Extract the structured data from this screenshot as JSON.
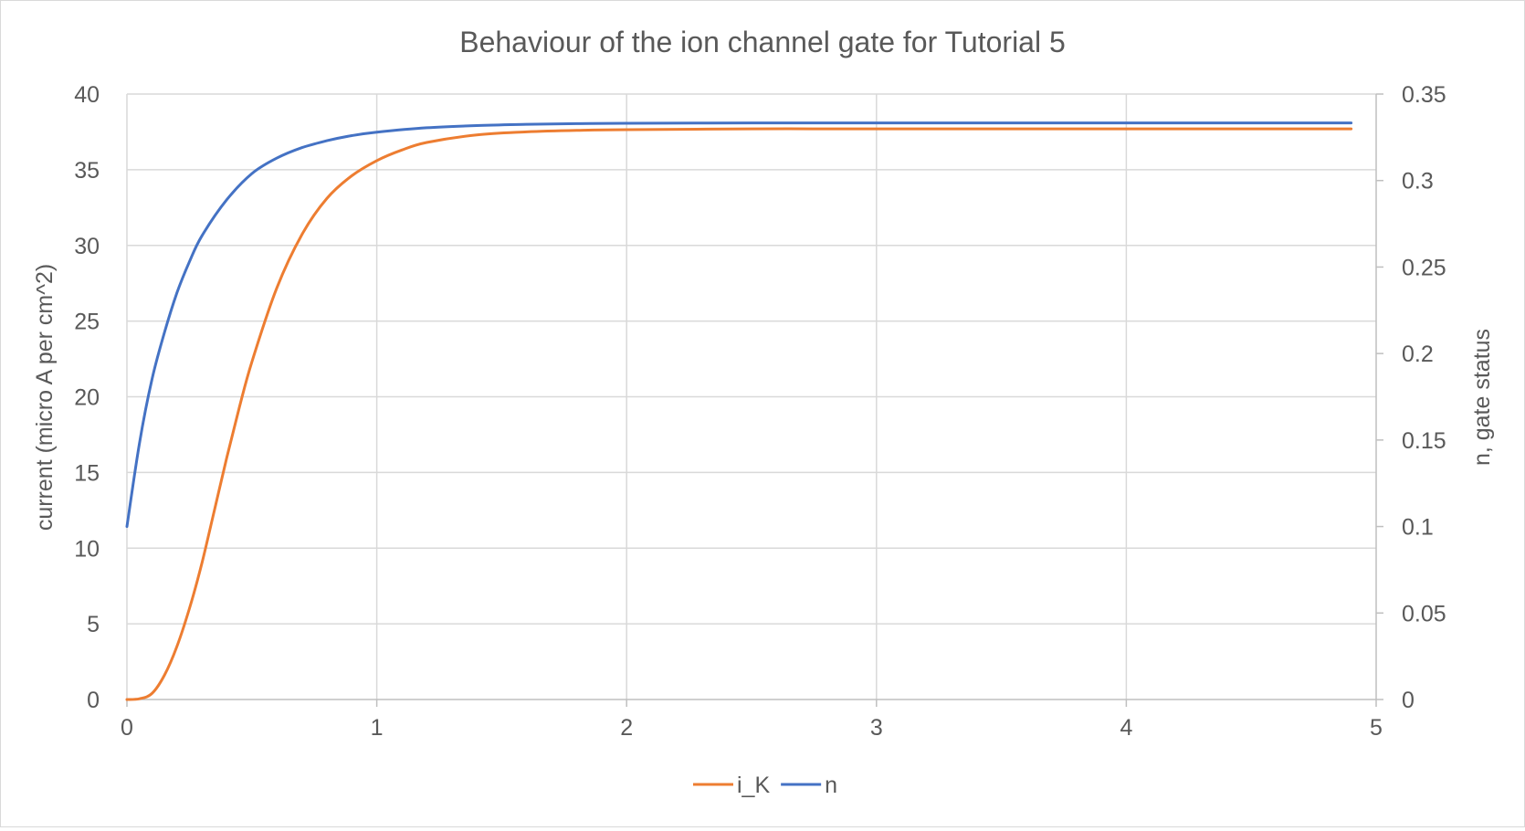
{
  "chart_data": {
    "type": "line",
    "title": "Behaviour of the ion channel gate for Tutorial 5",
    "ylabel": "current (micro A per cm^2)",
    "y2label": "n, gate status",
    "xlabel": "",
    "xlim": [
      0,
      5
    ],
    "ylim": [
      0,
      40
    ],
    "y2lim": [
      0,
      0.35
    ],
    "xticks": [
      "0",
      "1",
      "2",
      "3",
      "4",
      "5"
    ],
    "yticks": [
      "0",
      "5",
      "10",
      "15",
      "20",
      "25",
      "30",
      "35",
      "40"
    ],
    "y2ticks": [
      "0",
      "0.05",
      "0.1",
      "0.15",
      "0.2",
      "0.25",
      "0.3",
      "0.35"
    ],
    "grid": true,
    "legend_position": "bottom",
    "series": [
      {
        "name": "i_K",
        "axis": "left",
        "color": "#ED7D31",
        "x": [
          0,
          0.05,
          0.1,
          0.15,
          0.2,
          0.25,
          0.3,
          0.35,
          0.4,
          0.45,
          0.5,
          0.6,
          0.7,
          0.8,
          0.9,
          1.0,
          1.1,
          1.2,
          1.4,
          1.6,
          1.8,
          2.0,
          2.5,
          3.0,
          4.0,
          4.9
        ],
        "values": [
          0,
          0.05,
          0.4,
          1.6,
          3.5,
          6.0,
          9.0,
          12.5,
          16.0,
          19.3,
          22.3,
          27.2,
          30.7,
          33.1,
          34.6,
          35.6,
          36.3,
          36.8,
          37.3,
          37.5,
          37.6,
          37.65,
          37.7,
          37.7,
          37.7,
          37.7
        ]
      },
      {
        "name": "n",
        "axis": "right",
        "color": "#4472C4",
        "x": [
          0,
          0.05,
          0.1,
          0.15,
          0.2,
          0.25,
          0.3,
          0.4,
          0.5,
          0.6,
          0.7,
          0.8,
          0.9,
          1.0,
          1.2,
          1.4,
          1.6,
          1.8,
          2.0,
          2.5,
          3.0,
          4.0,
          4.9
        ],
        "values": [
          0.1,
          0.148,
          0.185,
          0.212,
          0.235,
          0.253,
          0.268,
          0.289,
          0.304,
          0.313,
          0.319,
          0.323,
          0.326,
          0.328,
          0.3305,
          0.3318,
          0.3325,
          0.3329,
          0.3331,
          0.3333,
          0.3333,
          0.3333,
          0.3333
        ]
      }
    ]
  }
}
